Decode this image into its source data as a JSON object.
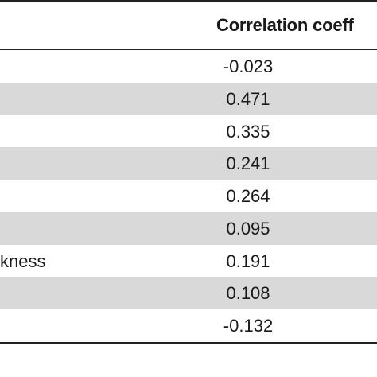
{
  "table": {
    "column_header": "Correlation coeff",
    "rows": [
      {
        "label": "",
        "value": "-0.023"
      },
      {
        "label": "",
        "value": "0.471"
      },
      {
        "label": "",
        "value": "0.335"
      },
      {
        "label": "",
        "value": "0.241"
      },
      {
        "label": "",
        "value": "0.264"
      },
      {
        "label": "",
        "value": "0.095"
      },
      {
        "label": "kness",
        "value": "0.191"
      },
      {
        "label": "",
        "value": "0.108"
      },
      {
        "label": "",
        "value": "-0.132"
      }
    ]
  }
}
